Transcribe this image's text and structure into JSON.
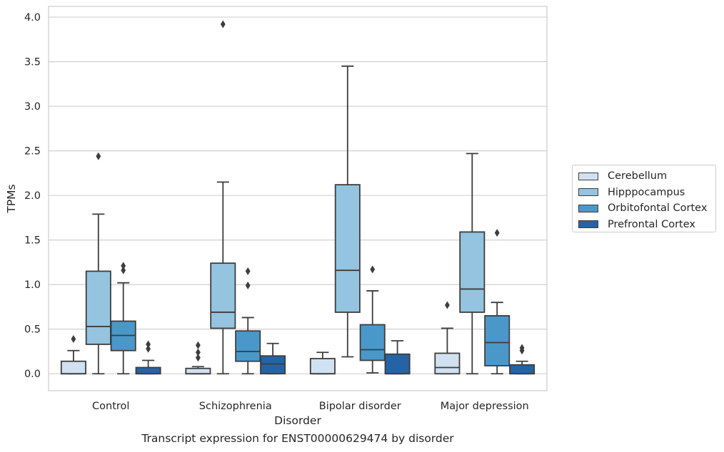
{
  "chart_data": {
    "type": "box",
    "title": "",
    "caption": "Transcript expression for ENST00000629474 by disorder",
    "xlabel": "Disorder",
    "ylabel": "TPMs",
    "ylim": [
      -0.19,
      4.12
    ],
    "yticks": [
      "0.0",
      "0.5",
      "1.0",
      "1.5",
      "2.0",
      "2.5",
      "3.0",
      "3.5",
      "4.0"
    ],
    "grid": "horizontal",
    "legend_position": "right",
    "categories": [
      "Control",
      "Schizophrenia",
      "Bipolar disorder",
      "Major depression"
    ],
    "series": [
      {
        "name": "Cerebellum",
        "color": "#d0e1f2",
        "boxes": [
          {
            "min": 0.0,
            "q1": 0.0,
            "median": 0.0,
            "q3": 0.14,
            "max": 0.26,
            "outliers": [
              0.39
            ]
          },
          {
            "min": 0.0,
            "q1": 0.0,
            "median": 0.0,
            "q3": 0.06,
            "max": 0.08,
            "outliers": [
              0.18,
              0.24,
              0.32
            ]
          },
          {
            "min": 0.0,
            "q1": 0.0,
            "median": 0.0,
            "q3": 0.17,
            "max": 0.24,
            "outliers": []
          },
          {
            "min": 0.0,
            "q1": 0.0,
            "median": 0.07,
            "q3": 0.23,
            "max": 0.51,
            "outliers": [
              0.77
            ]
          }
        ]
      },
      {
        "name": "Hipppocampus",
        "color": "#94c4df",
        "boxes": [
          {
            "min": 0.0,
            "q1": 0.33,
            "median": 0.53,
            "q3": 1.15,
            "max": 1.79,
            "outliers": [
              2.44
            ]
          },
          {
            "min": 0.0,
            "q1": 0.51,
            "median": 0.69,
            "q3": 1.24,
            "max": 2.15,
            "outliers": [
              3.92
            ]
          },
          {
            "min": 0.19,
            "q1": 0.69,
            "median": 1.16,
            "q3": 2.12,
            "max": 3.45,
            "outliers": []
          },
          {
            "min": 0.0,
            "q1": 0.69,
            "median": 0.95,
            "q3": 1.59,
            "max": 2.47,
            "outliers": []
          }
        ]
      },
      {
        "name": "Orbitofontal Cortex",
        "color": "#4a98c9",
        "boxes": [
          {
            "min": 0.0,
            "q1": 0.26,
            "median": 0.43,
            "q3": 0.59,
            "max": 1.02,
            "outliers": [
              1.16,
              1.21
            ]
          },
          {
            "min": 0.0,
            "q1": 0.14,
            "median": 0.25,
            "q3": 0.48,
            "max": 0.63,
            "outliers": [
              0.99,
              1.15
            ]
          },
          {
            "min": 0.01,
            "q1": 0.15,
            "median": 0.27,
            "q3": 0.55,
            "max": 0.93,
            "outliers": [
              1.17
            ]
          },
          {
            "min": 0.0,
            "q1": 0.09,
            "median": 0.35,
            "q3": 0.65,
            "max": 0.8,
            "outliers": [
              1.58
            ]
          }
        ]
      },
      {
        "name": "Prefrontal Cortex",
        "color": "#2464a5",
        "boxes": [
          {
            "min": 0.0,
            "q1": 0.0,
            "median": 0.0,
            "q3": 0.07,
            "max": 0.15,
            "outliers": [
              0.28,
              0.33
            ]
          },
          {
            "min": 0.0,
            "q1": 0.0,
            "median": 0.11,
            "q3": 0.2,
            "max": 0.34,
            "outliers": []
          },
          {
            "min": 0.0,
            "q1": 0.0,
            "median": 0.0,
            "q3": 0.22,
            "max": 0.37,
            "outliers": []
          },
          {
            "min": 0.0,
            "q1": 0.0,
            "median": 0.0,
            "q3": 0.1,
            "max": 0.14,
            "outliers": [
              0.26,
              0.29
            ]
          }
        ]
      }
    ]
  }
}
